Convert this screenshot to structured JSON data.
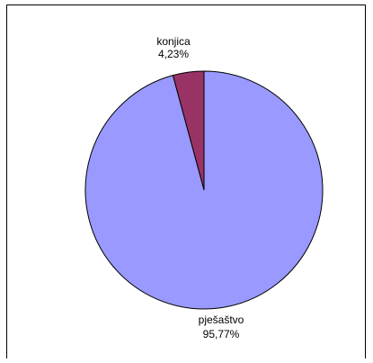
{
  "chart_data": {
    "type": "pie",
    "categories": [
      "konjica",
      "pješaštvo"
    ],
    "values": [
      4.23,
      95.77
    ],
    "value_labels": [
      "4,23%",
      "95,77%"
    ],
    "colors": [
      "#993366",
      "#9999FF"
    ],
    "title": "",
    "legend": "none",
    "start": "top",
    "direction": "counterclockwise"
  }
}
